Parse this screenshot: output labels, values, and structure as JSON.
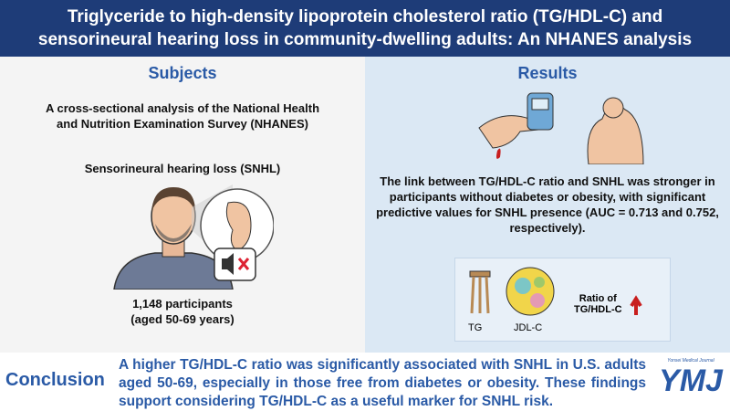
{
  "header": {
    "title": "Triglyceride to high-density lipoprotein cholesterol ratio (TG/HDL-C) and sensorineural hearing loss in community-dwelling adults: An NHANES analysis"
  },
  "subjects": {
    "heading": "Subjects",
    "design": "A cross-sectional analysis of the National Health and Nutrition Examination Survey (NHANES)",
    "outcome": "Sensorineural hearing loss (SNHL)",
    "participants": [
      "1,148 participants",
      "(aged 50-69 years)"
    ]
  },
  "results": {
    "heading": "Results",
    "finding": "The link between TG/HDL-C ratio and SNHL was stronger in participants without diabetes or obesity, with significant predictive values for SNHL presence (AUC = 0.713 and 0.752, respectively).",
    "labels": [
      "TG",
      "JDL-C"
    ],
    "ratio_label": [
      "Ratio of",
      "TG/HDL-C"
    ]
  },
  "conclusion": {
    "heading": "Conclusion",
    "text": "A higher TG/HDL-C ratio was significantly associated with SNHL in U.S. adults aged 50-69, especially in those free from diabetes or obesity. These findings support considering TG/HDL-C as a useful marker for SNHL risk."
  },
  "logo": {
    "subtitle": "Yonsei Medical Journal",
    "name": "YMJ"
  }
}
